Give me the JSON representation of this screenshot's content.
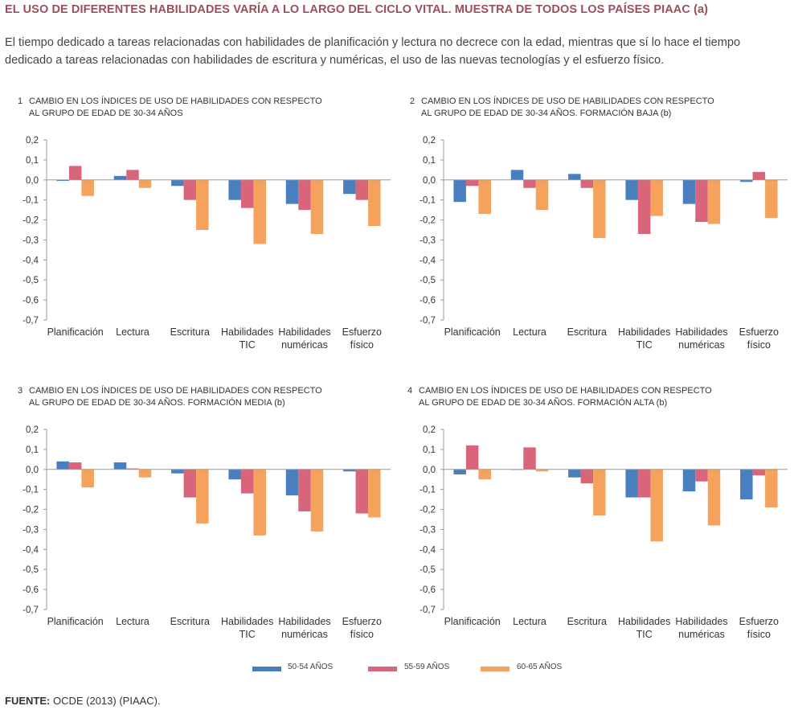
{
  "title": "EL USO DE DIFERENTES HABILIDADES VARÍA A LO LARGO DEL CICLO VITAL. MUESTRA DE TODOS LOS PAÍSES PIAAC (a)",
  "subtitle": "El tiempo dedicado a tareas relacionadas con habilidades de planificación y lectura no decrece con la edad, mientras que sí lo hace el tiempo dedicado a tareas relacionadas con habilidades de escritura y numéricas, el uso de las nuevas tecnologías y el esfuerzo físico.",
  "source_label": "FUENTE:",
  "source_text": "OCDE (2013) (PIAAC).",
  "colors": {
    "s1": "#4a7fbf",
    "s2": "#d9657a",
    "s3": "#f5a25d",
    "axis": "#999999"
  },
  "legend": [
    {
      "name": "50-54 AÑOS",
      "color": "#4a7fbf"
    },
    {
      "name": "55-59 AÑOS",
      "color": "#d9657a"
    },
    {
      "name": "60-65 AÑOS",
      "color": "#f5a25d"
    }
  ],
  "chart_data": [
    {
      "type": "bar",
      "number": "1",
      "title_line1": "CAMBIO EN LOS ÍNDICES DE USO DE HABILIDADES CON RESPECTO",
      "title_line2": "AL GRUPO DE EDAD DE 30-34 AÑOS",
      "categories": [
        [
          "Planificación"
        ],
        [
          "Lectura"
        ],
        [
          "Escritura"
        ],
        [
          "Habilidades",
          "TIC"
        ],
        [
          "Habilidades",
          "numéricas"
        ],
        [
          "Esfuerzo",
          "físico"
        ]
      ],
      "yticks": [
        "0,2",
        "0,1",
        "0,0",
        "-0,1",
        "-0,2",
        "-0,3",
        "-0,4",
        "-0,5",
        "-0,6",
        "-0,7"
      ],
      "ylim": [
        -0.7,
        0.2
      ],
      "series": [
        {
          "name": "50-54 AÑOS",
          "values": [
            -0.005,
            0.02,
            -0.03,
            -0.1,
            -0.12,
            -0.07
          ]
        },
        {
          "name": "55-59 AÑOS",
          "values": [
            0.07,
            0.05,
            -0.1,
            -0.14,
            -0.15,
            -0.1
          ]
        },
        {
          "name": "60-65 AÑOS",
          "values": [
            -0.08,
            -0.04,
            -0.25,
            -0.32,
            -0.27,
            -0.23
          ]
        }
      ]
    },
    {
      "type": "bar",
      "number": "2",
      "title_line1": "CAMBIO EN LOS ÍNDICES DE USO DE HABILIDADES CON RESPECTO",
      "title_line2": "AL GRUPO DE EDAD DE 30-34 AÑOS. FORMACIÓN BAJA",
      "title_note": "(b)",
      "categories": [
        [
          "Planificación"
        ],
        [
          "Lectura"
        ],
        [
          "Escritura"
        ],
        [
          "Habilidades",
          "TIC"
        ],
        [
          "Habilidades",
          "numéricas"
        ],
        [
          "Esfuerzo",
          "físico"
        ]
      ],
      "yticks": [
        "0,2",
        "0,1",
        "0,0",
        "-0,1",
        "-0,2",
        "-0,3",
        "-0,4",
        "-0,5",
        "-0,6",
        "-0,7"
      ],
      "ylim": [
        -0.7,
        0.2
      ],
      "series": [
        {
          "name": "50-54 AÑOS",
          "values": [
            -0.11,
            0.05,
            0.03,
            -0.1,
            -0.12,
            -0.01
          ]
        },
        {
          "name": "55-59 AÑOS",
          "values": [
            -0.03,
            -0.04,
            -0.04,
            -0.27,
            -0.21,
            0.04
          ]
        },
        {
          "name": "60-65 AÑOS",
          "values": [
            -0.17,
            -0.15,
            -0.29,
            -0.18,
            -0.22,
            -0.19
          ]
        }
      ]
    },
    {
      "type": "bar",
      "number": "3",
      "title_line1": "CAMBIO EN LOS ÍNDICES DE USO DE HABILIDADES CON RESPECTO",
      "title_line2": "AL GRUPO DE EDAD DE 30-34 AÑOS. FORMACIÓN MEDIA",
      "title_note": "(b)",
      "categories": [
        [
          "Planificación"
        ],
        [
          "Lectura"
        ],
        [
          "Escritura"
        ],
        [
          "Habilidades",
          "TIC"
        ],
        [
          "Habilidades",
          "numéricas"
        ],
        [
          "Esfuerzo",
          "físico"
        ]
      ],
      "yticks": [
        "0,2",
        "0,1",
        "0,0",
        "-0,1",
        "-0,2",
        "-0,3",
        "-0,4",
        "-0,5",
        "-0,6",
        "-0,7"
      ],
      "ylim": [
        -0.7,
        0.2
      ],
      "series": [
        {
          "name": "50-54 AÑOS",
          "values": [
            0.04,
            0.035,
            -0.02,
            -0.05,
            -0.13,
            -0.01
          ]
        },
        {
          "name": "55-59 AÑOS",
          "values": [
            0.035,
            0.005,
            -0.14,
            -0.12,
            -0.21,
            -0.22
          ]
        },
        {
          "name": "60-65 AÑOS",
          "values": [
            -0.09,
            -0.04,
            -0.27,
            -0.33,
            -0.31,
            -0.24
          ]
        }
      ]
    },
    {
      "type": "bar",
      "number": "4",
      "title_line1": "CAMBIO EN LOS ÍNDICES DE USO DE HABILIDADES CON RESPECTO",
      "title_line2": "AL GRUPO DE EDAD DE 30-34 AÑOS. FORMACIÓN ALTA",
      "title_note": "(b)",
      "categories": [
        [
          "Planificación"
        ],
        [
          "Lectura"
        ],
        [
          "Escritura"
        ],
        [
          "Habilidades",
          "TIC"
        ],
        [
          "Habilidades",
          "numéricas"
        ],
        [
          "Esfuerzo",
          "físico"
        ]
      ],
      "yticks": [
        "0,2",
        "0,1",
        "0,0",
        "-0,1",
        "-0,2",
        "-0,3",
        "-0,4",
        "-0,5",
        "-0,6",
        "-0,7"
      ],
      "ylim": [
        -0.7,
        0.2
      ],
      "series": [
        {
          "name": "50-54 AÑOS",
          "values": [
            -0.025,
            0.0,
            -0.04,
            -0.14,
            -0.11,
            -0.15
          ]
        },
        {
          "name": "55-59 AÑOS",
          "values": [
            0.12,
            0.11,
            -0.07,
            -0.14,
            -0.06,
            -0.03
          ]
        },
        {
          "name": "60-65 AÑOS",
          "values": [
            -0.05,
            -0.01,
            -0.23,
            -0.36,
            -0.28,
            -0.19
          ]
        }
      ]
    }
  ]
}
